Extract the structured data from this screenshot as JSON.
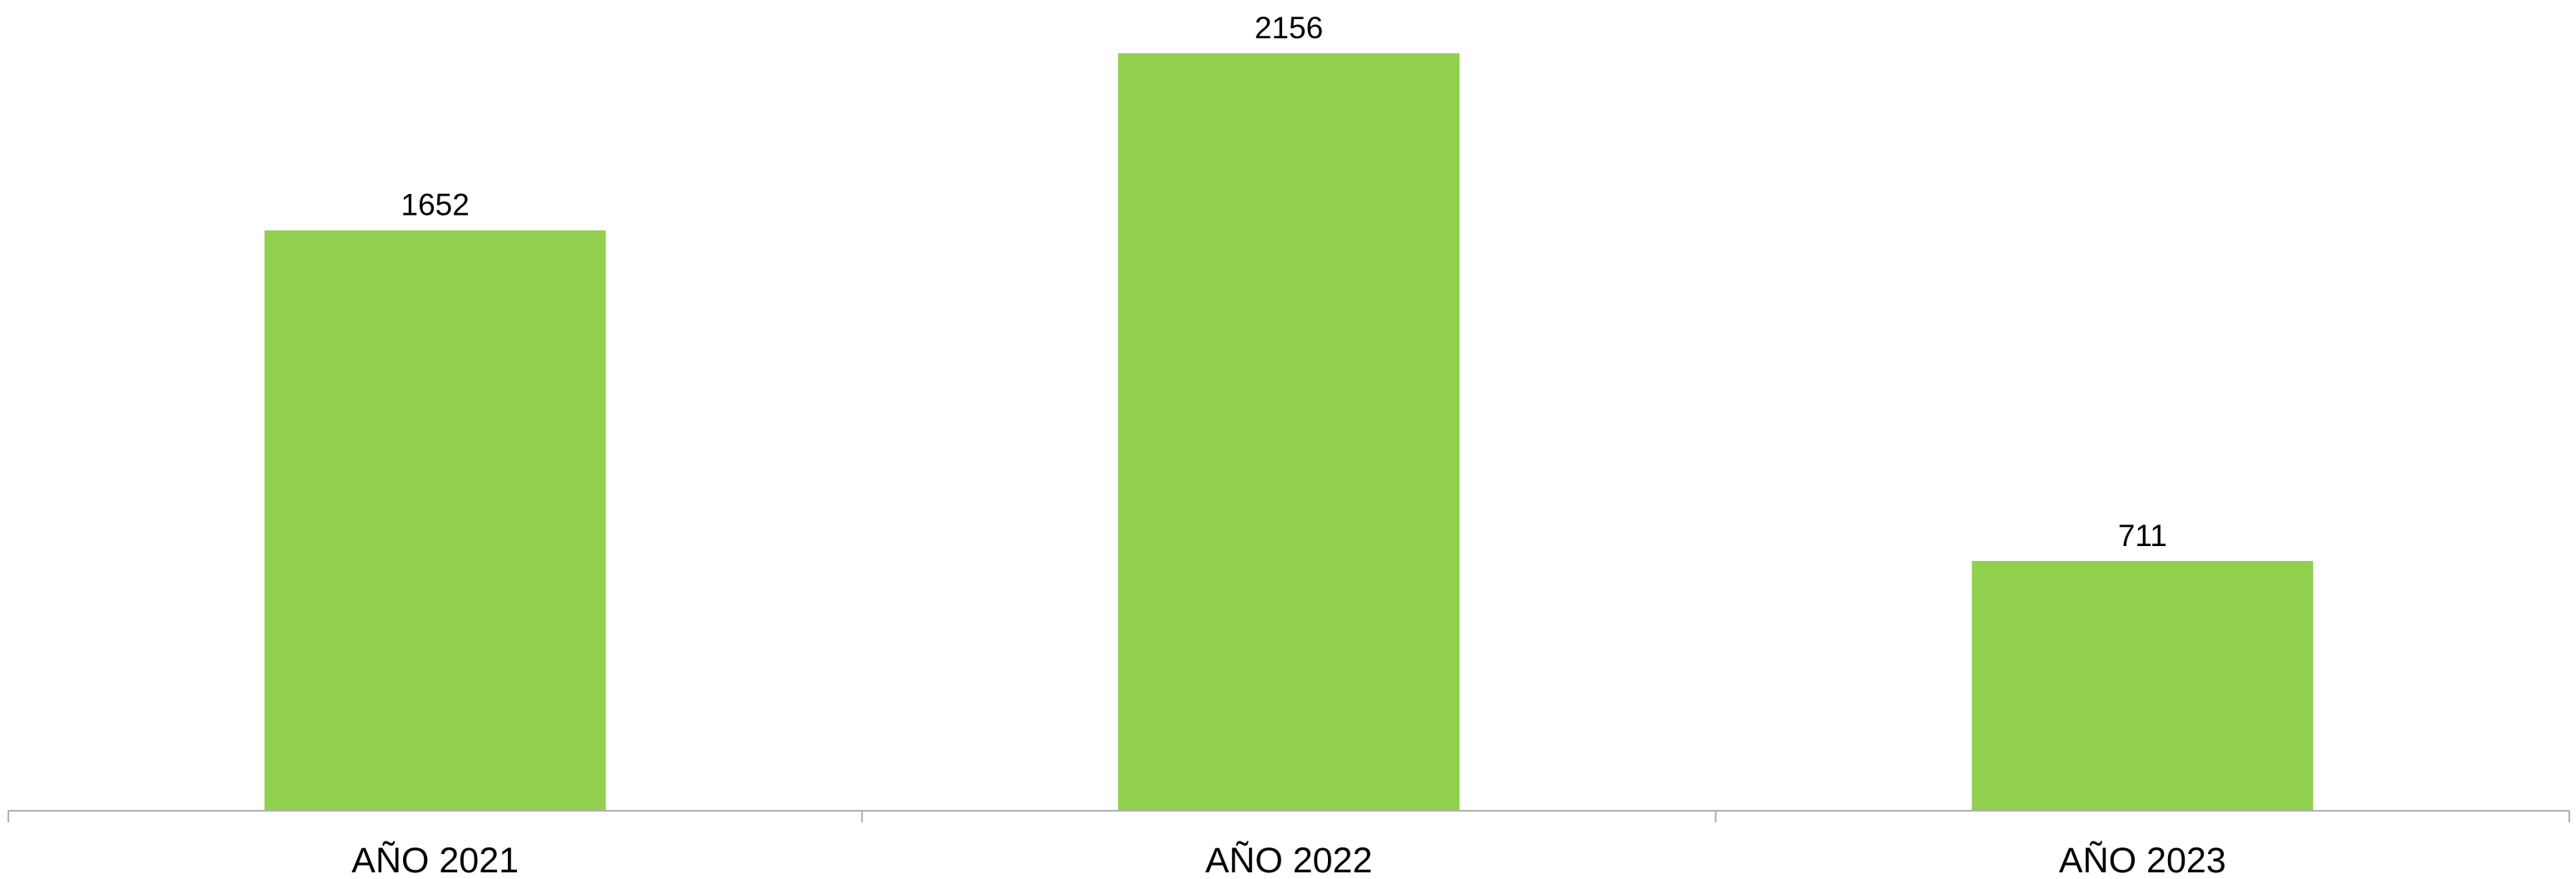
{
  "chart_data": {
    "type": "bar",
    "categories": [
      "AÑO 2021",
      "AÑO 2022",
      "AÑO 2023"
    ],
    "values": [
      1652,
      2156,
      711
    ],
    "title": "",
    "xlabel": "",
    "ylabel": "",
    "ylim": [
      0,
      2156
    ],
    "grid": false,
    "legend": "none",
    "data_labels": true,
    "bar_color": "#92d050",
    "axis_color": "#b0b0b0"
  }
}
